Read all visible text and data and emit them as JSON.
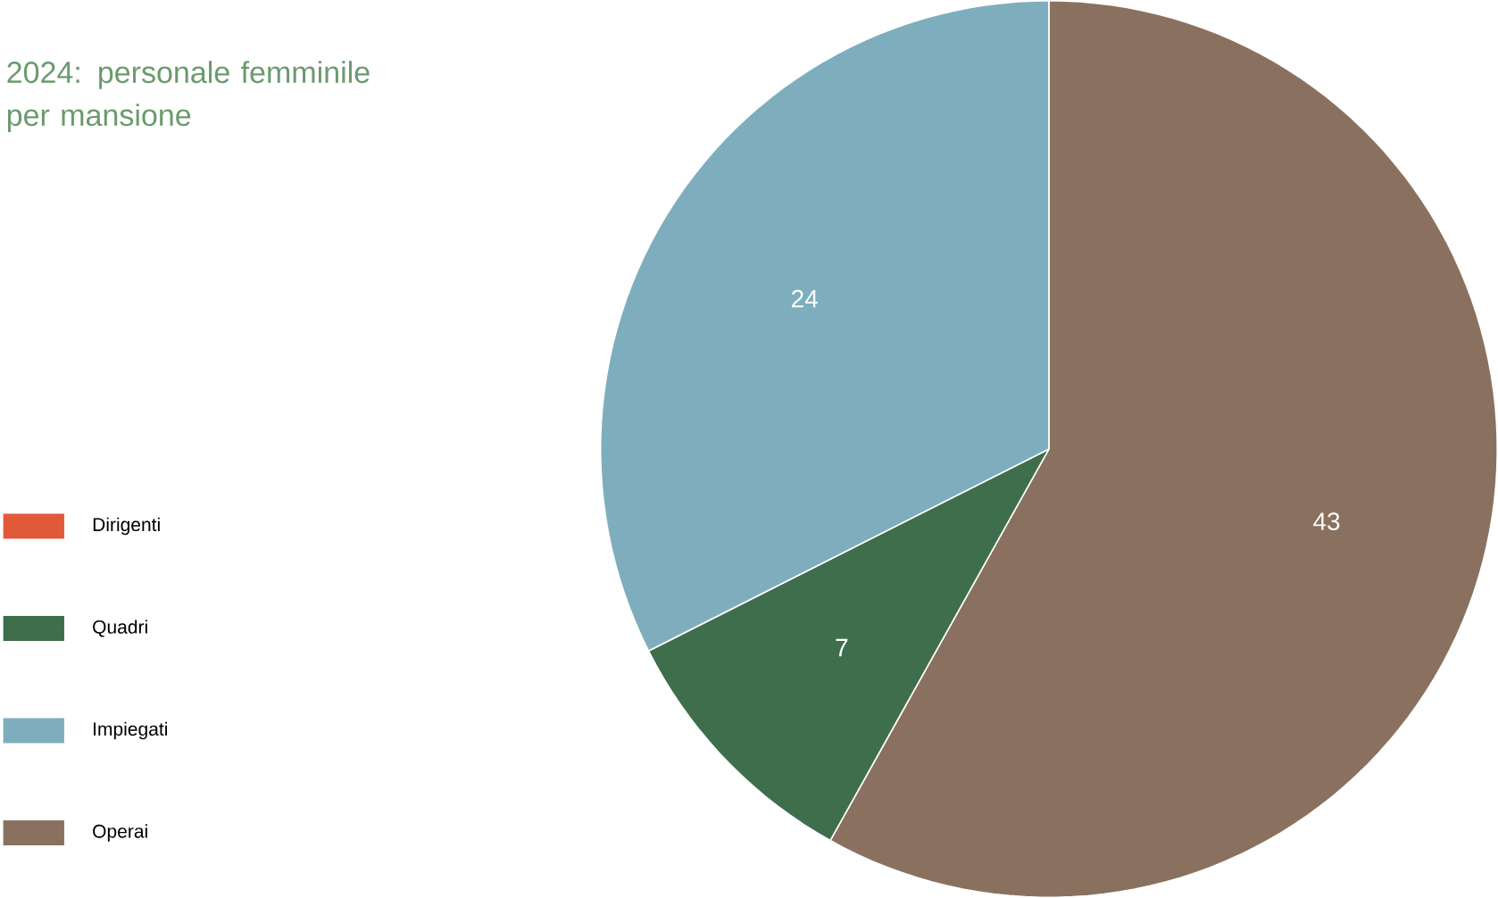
{
  "chart_data": {
    "type": "pie",
    "title": "2024: personale femminile per mansione",
    "categories": [
      "Dirigenti",
      "Quadri",
      "Impiegati",
      "Operai"
    ],
    "values": [
      0,
      7,
      24,
      43
    ],
    "colors": [
      "#e05a3a",
      "#3f6e4c",
      "#7eaebd",
      "#8a715f"
    ],
    "value_labels": [
      null,
      "7",
      "24",
      "43"
    ],
    "legend": "left"
  }
}
